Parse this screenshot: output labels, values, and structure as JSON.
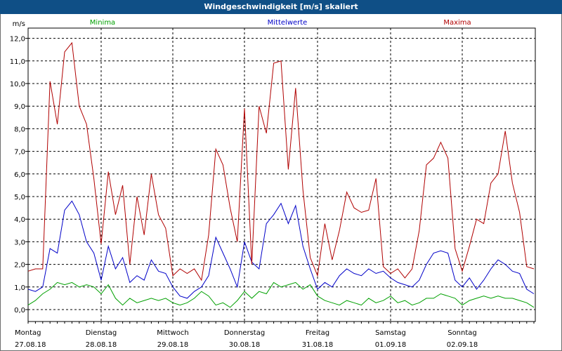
{
  "window": {
    "title": "Windgeschwindigkeit [m/s] skaliert"
  },
  "chart_data": {
    "type": "line",
    "title": "Windgeschwindigkeit [m/s] skaliert",
    "ylabel": "m/s",
    "ylim": [
      0,
      12.5
    ],
    "yticks": [
      "0,0",
      "1,0",
      "2,0",
      "3,0",
      "4,0",
      "5,0",
      "6,0",
      "7,0",
      "8,0",
      "9,0",
      "10,0",
      "11,0",
      "12,0"
    ],
    "xlim": [
      0,
      7
    ],
    "days": [
      {
        "weekday": "Montag",
        "date": "27.08.18"
      },
      {
        "weekday": "Dienstag",
        "date": "28.08.18"
      },
      {
        "weekday": "Mittwoch",
        "date": "29.08.18"
      },
      {
        "weekday": "Donnerstag",
        "date": "30.08.18"
      },
      {
        "weekday": "Freitag",
        "date": "31.08.18"
      },
      {
        "weekday": "Samstag",
        "date": "01.09.18"
      },
      {
        "weekday": "Sonntag",
        "date": "02.09.18"
      }
    ],
    "grid": true,
    "legend_position": "top",
    "series": [
      {
        "name": "Minima",
        "color": "#00a000",
        "x": [
          0,
          0.1,
          0.2,
          0.3,
          0.4,
          0.5,
          0.6,
          0.7,
          0.8,
          0.9,
          1,
          1.1,
          1.2,
          1.3,
          1.4,
          1.5,
          1.6,
          1.7,
          1.8,
          1.9,
          2,
          2.1,
          2.2,
          2.3,
          2.4,
          2.5,
          2.6,
          2.7,
          2.8,
          2.9,
          3,
          3.1,
          3.2,
          3.3,
          3.4,
          3.5,
          3.6,
          3.7,
          3.8,
          3.9,
          4,
          4.1,
          4.2,
          4.3,
          4.4,
          4.5,
          4.6,
          4.7,
          4.8,
          4.9,
          5,
          5.1,
          5.2,
          5.3,
          5.4,
          5.5,
          5.6,
          5.7,
          5.8,
          5.9,
          6,
          6.1,
          6.2,
          6.3,
          6.4,
          6.5,
          6.6,
          6.7,
          6.8,
          6.9,
          7
        ],
        "values": [
          0.2,
          0.4,
          0.7,
          0.9,
          1.2,
          1.1,
          1.2,
          1.0,
          1.1,
          1.0,
          0.7,
          1.1,
          0.5,
          0.2,
          0.5,
          0.3,
          0.4,
          0.5,
          0.4,
          0.5,
          0.3,
          0.2,
          0.3,
          0.5,
          0.8,
          0.6,
          0.2,
          0.3,
          0.1,
          0.4,
          0.8,
          0.5,
          0.8,
          0.7,
          1.2,
          1.0,
          1.1,
          1.2,
          0.9,
          1.1,
          0.6,
          0.4,
          0.3,
          0.2,
          0.4,
          0.3,
          0.2,
          0.5,
          0.3,
          0.4,
          0.6,
          0.3,
          0.4,
          0.2,
          0.3,
          0.5,
          0.5,
          0.7,
          0.6,
          0.5,
          0.2,
          0.4,
          0.5,
          0.6,
          0.5,
          0.6,
          0.5,
          0.5,
          0.4,
          0.3,
          0.1
        ]
      },
      {
        "name": "Mittelwerte",
        "color": "#0000c8",
        "x": [
          0,
          0.1,
          0.2,
          0.3,
          0.4,
          0.5,
          0.6,
          0.7,
          0.8,
          0.9,
          1,
          1.1,
          1.2,
          1.3,
          1.4,
          1.5,
          1.6,
          1.7,
          1.8,
          1.9,
          2,
          2.1,
          2.2,
          2.3,
          2.4,
          2.5,
          2.6,
          2.7,
          2.8,
          2.9,
          3,
          3.1,
          3.2,
          3.3,
          3.4,
          3.5,
          3.6,
          3.7,
          3.8,
          3.9,
          4,
          4.1,
          4.2,
          4.3,
          4.4,
          4.5,
          4.6,
          4.7,
          4.8,
          4.9,
          5,
          5.1,
          5.2,
          5.3,
          5.4,
          5.5,
          5.6,
          5.7,
          5.8,
          5.9,
          6,
          6.1,
          6.2,
          6.3,
          6.4,
          6.5,
          6.6,
          6.7,
          6.8,
          6.9,
          7
        ],
        "values": [
          0.9,
          0.8,
          1.0,
          2.7,
          2.5,
          4.4,
          4.8,
          4.2,
          3.0,
          2.5,
          1.3,
          2.8,
          1.8,
          2.3,
          1.2,
          1.5,
          1.3,
          2.2,
          1.7,
          1.6,
          1.0,
          0.6,
          0.5,
          0.8,
          1.0,
          1.5,
          3.2,
          2.5,
          1.8,
          1.0,
          3.0,
          2.1,
          1.8,
          3.8,
          4.2,
          4.7,
          3.8,
          4.6,
          2.8,
          1.8,
          0.9,
          1.2,
          1.0,
          1.5,
          1.8,
          1.6,
          1.5,
          1.8,
          1.6,
          1.7,
          1.4,
          1.2,
          1.1,
          1.0,
          1.3,
          2.0,
          2.5,
          2.6,
          2.5,
          1.3,
          1.0,
          1.4,
          0.9,
          1.3,
          1.8,
          2.2,
          2.0,
          1.7,
          1.6,
          0.9,
          0.7
        ]
      },
      {
        "name": "Maxima",
        "color": "#b00000",
        "x": [
          0,
          0.1,
          0.2,
          0.3,
          0.4,
          0.5,
          0.6,
          0.7,
          0.8,
          0.9,
          1,
          1.1,
          1.2,
          1.3,
          1.4,
          1.5,
          1.6,
          1.7,
          1.8,
          1.9,
          2,
          2.1,
          2.2,
          2.3,
          2.4,
          2.5,
          2.6,
          2.7,
          2.8,
          2.9,
          3,
          3.1,
          3.2,
          3.3,
          3.4,
          3.5,
          3.6,
          3.7,
          3.8,
          3.9,
          4,
          4.1,
          4.2,
          4.3,
          4.4,
          4.5,
          4.6,
          4.7,
          4.8,
          4.9,
          5,
          5.1,
          5.2,
          5.3,
          5.4,
          5.5,
          5.6,
          5.7,
          5.8,
          5.9,
          6,
          6.1,
          6.2,
          6.3,
          6.4,
          6.5,
          6.6,
          6.7,
          6.8,
          6.9,
          7
        ],
        "values": [
          1.7,
          1.8,
          1.8,
          10.1,
          8.2,
          11.4,
          11.8,
          9.0,
          8.2,
          5.8,
          2.9,
          6.1,
          4.2,
          5.5,
          2.0,
          5.0,
          3.3,
          6.0,
          4.2,
          3.6,
          1.5,
          1.8,
          1.6,
          1.8,
          1.3,
          3.3,
          7.1,
          6.4,
          4.5,
          3.0,
          8.9,
          2.0,
          9.0,
          7.8,
          10.9,
          11.0,
          6.2,
          9.8,
          5.3,
          2.3,
          1.5,
          3.8,
          2.2,
          3.5,
          5.2,
          4.5,
          4.3,
          4.4,
          5.8,
          1.9,
          1.6,
          1.8,
          1.4,
          1.8,
          3.5,
          6.4,
          6.7,
          7.4,
          6.7,
          2.7,
          1.7,
          2.8,
          4.0,
          3.8,
          5.6,
          6.0,
          7.9,
          5.6,
          4.3,
          1.9,
          1.8
        ]
      }
    ]
  }
}
